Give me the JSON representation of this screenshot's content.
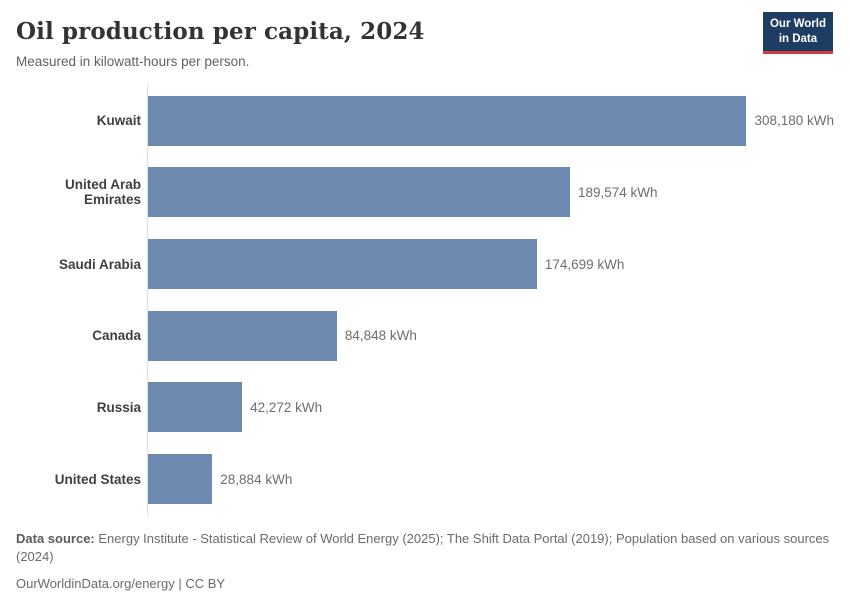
{
  "header": {
    "title": "Oil production per capita, 2024",
    "subtitle": "Measured in kilowatt-hours per person.",
    "logo": {
      "line1": "Our World",
      "line2": "in Data"
    }
  },
  "chart_data": {
    "type": "bar",
    "orientation": "horizontal",
    "title": "Oil production per capita, 2024",
    "subtitle": "Measured in kilowatt-hours per person.",
    "categories": [
      "Kuwait",
      "United Arab Emirates",
      "Saudi Arabia",
      "Canada",
      "Russia",
      "United States"
    ],
    "values": [
      308180,
      189574,
      174699,
      84848,
      42272,
      28884
    ],
    "value_labels": [
      "308,180 kWh",
      "189,574 kWh",
      "174,699 kWh",
      "84,848 kWh",
      "42,272 kWh",
      "28,884 kWh"
    ],
    "unit": "kWh",
    "xlabel": "",
    "ylabel": "",
    "xlim": [
      0,
      308180
    ],
    "grid": false,
    "legend": false,
    "bar_color": "#6c89af"
  },
  "footer": {
    "source_label": "Data source:",
    "source_text": "Energy Institute - Statistical Review of World Energy (2025); The Shift Data Portal (2019); Population based on various sources (2024)",
    "citation": "OurWorldinData.org/energy | CC BY"
  },
  "colors": {
    "bar": "#6c89af",
    "axis_line": "#dcdcdc",
    "logo_background": "#1d3d63",
    "logo_accent": "#cf3b41",
    "title_text": "#333333",
    "subtitle_text": "#616161",
    "label_text": "#3f3f3f",
    "value_text": "#6e6e6e"
  }
}
